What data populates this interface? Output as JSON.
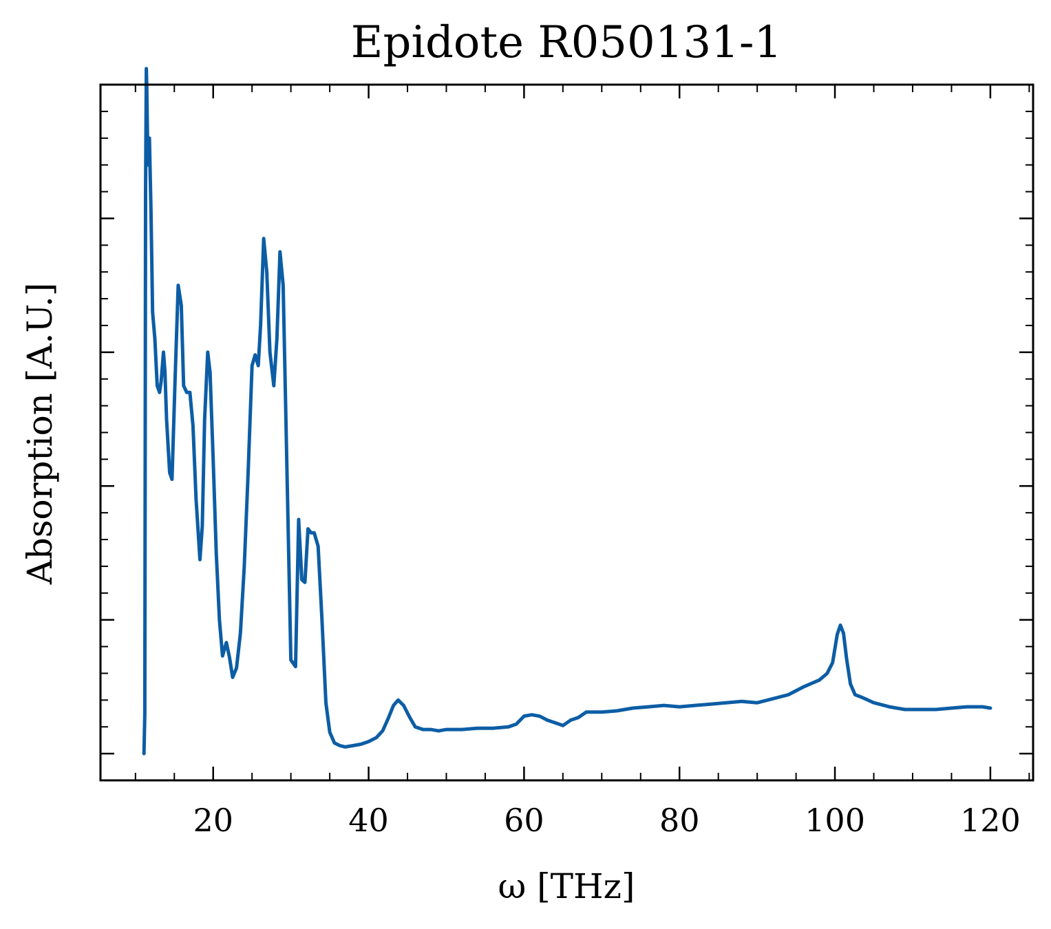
{
  "chart_data": {
    "type": "line",
    "title": "Epidote R050131-1",
    "xlabel": "ω [THz]",
    "ylabel": "Absorption [A.U.]",
    "xlim": [
      5.5,
      125.5
    ],
    "ylim": [
      -0.02,
      0.5
    ],
    "x_ticks": [
      20,
      40,
      60,
      80,
      100,
      120
    ],
    "x_tick_labels": [
      "20",
      "40",
      "60",
      "80",
      "100",
      "120"
    ],
    "y_ticks": [
      0.0,
      0.1,
      0.2,
      0.3,
      0.4,
      0.5
    ],
    "y_tick_labels": [],
    "grid": false,
    "legend": "none",
    "colors": {
      "line": "#0c5da5",
      "axes": "#000000",
      "background": "#ffffff"
    },
    "series": [
      {
        "values": [
          [
            11.1,
            0.0
          ],
          [
            11.2,
            0.03
          ],
          [
            11.3,
            0.42
          ],
          [
            11.4,
            0.512
          ],
          [
            11.45,
            0.5
          ],
          [
            11.6,
            0.44
          ],
          [
            11.8,
            0.46
          ],
          [
            12.0,
            0.405
          ],
          [
            12.2,
            0.33
          ],
          [
            12.5,
            0.31
          ],
          [
            12.8,
            0.275
          ],
          [
            13.1,
            0.27
          ],
          [
            13.3,
            0.278
          ],
          [
            13.6,
            0.3
          ],
          [
            13.8,
            0.285
          ],
          [
            14.0,
            0.25
          ],
          [
            14.4,
            0.21
          ],
          [
            14.7,
            0.205
          ],
          [
            15.1,
            0.28
          ],
          [
            15.5,
            0.35
          ],
          [
            15.9,
            0.335
          ],
          [
            16.2,
            0.275
          ],
          [
            16.6,
            0.27
          ],
          [
            17.0,
            0.27
          ],
          [
            17.4,
            0.245
          ],
          [
            17.8,
            0.19
          ],
          [
            18.3,
            0.145
          ],
          [
            18.6,
            0.17
          ],
          [
            18.9,
            0.25
          ],
          [
            19.3,
            0.3
          ],
          [
            19.6,
            0.285
          ],
          [
            20.0,
            0.22
          ],
          [
            20.4,
            0.15
          ],
          [
            20.8,
            0.1
          ],
          [
            21.2,
            0.073
          ],
          [
            21.7,
            0.083
          ],
          [
            22.1,
            0.072
          ],
          [
            22.5,
            0.057
          ],
          [
            23.0,
            0.064
          ],
          [
            23.5,
            0.09
          ],
          [
            24.0,
            0.14
          ],
          [
            24.5,
            0.21
          ],
          [
            25.0,
            0.29
          ],
          [
            25.4,
            0.298
          ],
          [
            25.8,
            0.29
          ],
          [
            26.1,
            0.32
          ],
          [
            26.5,
            0.385
          ],
          [
            26.9,
            0.36
          ],
          [
            27.3,
            0.3
          ],
          [
            27.8,
            0.275
          ],
          [
            28.2,
            0.31
          ],
          [
            28.6,
            0.375
          ],
          [
            29.0,
            0.35
          ],
          [
            29.5,
            0.21
          ],
          [
            30.0,
            0.07
          ],
          [
            30.6,
            0.065
          ],
          [
            31.0,
            0.175
          ],
          [
            31.4,
            0.13
          ],
          [
            31.8,
            0.128
          ],
          [
            32.2,
            0.168
          ],
          [
            32.6,
            0.165
          ],
          [
            33.0,
            0.165
          ],
          [
            33.5,
            0.155
          ],
          [
            34.0,
            0.1
          ],
          [
            34.5,
            0.038
          ],
          [
            35.0,
            0.016
          ],
          [
            35.6,
            0.008
          ],
          [
            36.3,
            0.006
          ],
          [
            37.0,
            0.005
          ],
          [
            38.0,
            0.006
          ],
          [
            39.0,
            0.007
          ],
          [
            40.0,
            0.009
          ],
          [
            41.0,
            0.012
          ],
          [
            41.8,
            0.017
          ],
          [
            42.5,
            0.026
          ],
          [
            43.2,
            0.036
          ],
          [
            43.8,
            0.04
          ],
          [
            44.5,
            0.036
          ],
          [
            45.3,
            0.027
          ],
          [
            46.0,
            0.02
          ],
          [
            47.0,
            0.018
          ],
          [
            48.0,
            0.018
          ],
          [
            49.0,
            0.017
          ],
          [
            50.0,
            0.018
          ],
          [
            52.0,
            0.018
          ],
          [
            54.0,
            0.019
          ],
          [
            56.0,
            0.019
          ],
          [
            58.0,
            0.02
          ],
          [
            59.0,
            0.022
          ],
          [
            60.0,
            0.028
          ],
          [
            61.0,
            0.029
          ],
          [
            62.0,
            0.028
          ],
          [
            63.0,
            0.025
          ],
          [
            64.0,
            0.023
          ],
          [
            65.0,
            0.021
          ],
          [
            66.0,
            0.025
          ],
          [
            67.0,
            0.027
          ],
          [
            68.0,
            0.031
          ],
          [
            70.0,
            0.031
          ],
          [
            72.0,
            0.032
          ],
          [
            74.0,
            0.034
          ],
          [
            76.0,
            0.035
          ],
          [
            78.0,
            0.036
          ],
          [
            80.0,
            0.035
          ],
          [
            82.0,
            0.036
          ],
          [
            84.0,
            0.037
          ],
          [
            86.0,
            0.038
          ],
          [
            88.0,
            0.039
          ],
          [
            90.0,
            0.038
          ],
          [
            92.0,
            0.041
          ],
          [
            94.0,
            0.044
          ],
          [
            96.0,
            0.05
          ],
          [
            98.0,
            0.055
          ],
          [
            99.0,
            0.06
          ],
          [
            99.7,
            0.068
          ],
          [
            100.3,
            0.089
          ],
          [
            100.7,
            0.096
          ],
          [
            101.1,
            0.09
          ],
          [
            101.5,
            0.071
          ],
          [
            102.0,
            0.052
          ],
          [
            102.6,
            0.044
          ],
          [
            103.5,
            0.042
          ],
          [
            105.0,
            0.038
          ],
          [
            107.0,
            0.035
          ],
          [
            109.0,
            0.033
          ],
          [
            111.0,
            0.033
          ],
          [
            113.0,
            0.033
          ],
          [
            115.0,
            0.034
          ],
          [
            117.0,
            0.035
          ],
          [
            119.0,
            0.035
          ],
          [
            120.0,
            0.034
          ]
        ]
      }
    ]
  }
}
